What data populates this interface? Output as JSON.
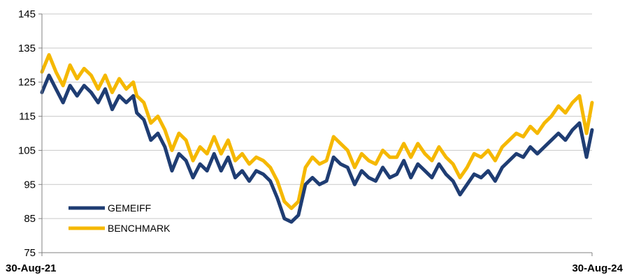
{
  "chart_data": {
    "type": "line",
    "title": "",
    "xlabel": "",
    "ylabel": "",
    "ylim": [
      75,
      145
    ],
    "yticks": [
      75,
      85,
      95,
      105,
      115,
      125,
      135,
      145
    ],
    "x_start": "30-Aug-21",
    "x_end": "30-Aug-24",
    "xtick_labels": [
      "30-Aug-21",
      "30-Aug-24"
    ],
    "grid": true,
    "legend_position": "bottom-left",
    "series": [
      {
        "name": "GEMEIFF",
        "color": "#1f3d73",
        "x": [
          "2021-08-30",
          "2021-09-13",
          "2021-09-27",
          "2021-10-11",
          "2021-10-25",
          "2021-11-08",
          "2021-11-22",
          "2021-12-06",
          "2021-12-20",
          "2022-01-03",
          "2022-01-17",
          "2022-01-31",
          "2022-02-14",
          "2022-02-28",
          "2022-03-07",
          "2022-03-21",
          "2022-04-04",
          "2022-04-18",
          "2022-05-02",
          "2022-05-16",
          "2022-05-30",
          "2022-06-13",
          "2022-06-27",
          "2022-07-11",
          "2022-07-25",
          "2022-08-08",
          "2022-08-22",
          "2022-09-05",
          "2022-09-19",
          "2022-10-03",
          "2022-10-17",
          "2022-10-31",
          "2022-11-14",
          "2022-11-28",
          "2022-12-12",
          "2022-12-26",
          "2023-01-09",
          "2023-01-23",
          "2023-02-06",
          "2023-02-20",
          "2023-03-06",
          "2023-03-20",
          "2023-04-03",
          "2023-04-17",
          "2023-05-01",
          "2023-05-15",
          "2023-05-29",
          "2023-06-12",
          "2023-06-26",
          "2023-07-10",
          "2023-07-24",
          "2023-08-07",
          "2023-08-21",
          "2023-09-04",
          "2023-09-18",
          "2023-10-02",
          "2023-10-16",
          "2023-10-30",
          "2023-11-13",
          "2023-11-27",
          "2023-12-11",
          "2023-12-25",
          "2024-01-08",
          "2024-01-22",
          "2024-02-05",
          "2024-02-19",
          "2024-03-04",
          "2024-03-18",
          "2024-04-01",
          "2024-04-15",
          "2024-04-29",
          "2024-05-13",
          "2024-05-27",
          "2024-06-10",
          "2024-06-24",
          "2024-07-08",
          "2024-07-22",
          "2024-08-05",
          "2024-08-19",
          "2024-08-30"
        ],
        "values": [
          122,
          127,
          123,
          119,
          124,
          121,
          124,
          122,
          119,
          123,
          117,
          121,
          119,
          121,
          116,
          114,
          108,
          110,
          106,
          99,
          104,
          102,
          97,
          101,
          99,
          104,
          99,
          103,
          97,
          99,
          96,
          99,
          98,
          96,
          91,
          85,
          84,
          86,
          95,
          97,
          95,
          96,
          103,
          101,
          100,
          95,
          99,
          97,
          96,
          100,
          97,
          98,
          102,
          97,
          101,
          99,
          97,
          101,
          98,
          96,
          92,
          95,
          98,
          97,
          99,
          96,
          100,
          102,
          104,
          103,
          106,
          104,
          106,
          108,
          110,
          108,
          111,
          113,
          103,
          111
        ]
      },
      {
        "name": "BENCHMARK",
        "color": "#f5b800",
        "x": [
          "2021-08-30",
          "2021-09-13",
          "2021-09-27",
          "2021-10-11",
          "2021-10-25",
          "2021-11-08",
          "2021-11-22",
          "2021-12-06",
          "2021-12-20",
          "2022-01-03",
          "2022-01-17",
          "2022-01-31",
          "2022-02-14",
          "2022-02-28",
          "2022-03-07",
          "2022-03-21",
          "2022-04-04",
          "2022-04-18",
          "2022-05-02",
          "2022-05-16",
          "2022-05-30",
          "2022-06-13",
          "2022-06-27",
          "2022-07-11",
          "2022-07-25",
          "2022-08-08",
          "2022-08-22",
          "2022-09-05",
          "2022-09-19",
          "2022-10-03",
          "2022-10-17",
          "2022-10-31",
          "2022-11-14",
          "2022-11-28",
          "2022-12-12",
          "2022-12-26",
          "2023-01-09",
          "2023-01-23",
          "2023-02-06",
          "2023-02-20",
          "2023-03-06",
          "2023-03-20",
          "2023-04-03",
          "2023-04-17",
          "2023-05-01",
          "2023-05-15",
          "2023-05-29",
          "2023-06-12",
          "2023-06-26",
          "2023-07-10",
          "2023-07-24",
          "2023-08-07",
          "2023-08-21",
          "2023-09-04",
          "2023-09-18",
          "2023-10-02",
          "2023-10-16",
          "2023-10-30",
          "2023-11-13",
          "2023-11-27",
          "2023-12-11",
          "2023-12-25",
          "2024-01-08",
          "2024-01-22",
          "2024-02-05",
          "2024-02-19",
          "2024-03-04",
          "2024-03-18",
          "2024-04-01",
          "2024-04-15",
          "2024-04-29",
          "2024-05-13",
          "2024-05-27",
          "2024-06-10",
          "2024-06-24",
          "2024-07-08",
          "2024-07-22",
          "2024-08-05",
          "2024-08-19",
          "2024-08-30"
        ],
        "values": [
          128,
          133,
          128,
          124,
          130,
          126,
          129,
          127,
          123,
          127,
          122,
          126,
          123,
          125,
          121,
          119,
          113,
          115,
          111,
          105,
          110,
          108,
          102,
          106,
          104,
          109,
          104,
          108,
          102,
          104,
          101,
          103,
          102,
          100,
          96,
          90,
          88,
          90,
          100,
          103,
          101,
          102,
          109,
          107,
          105,
          100,
          104,
          102,
          101,
          105,
          103,
          103,
          107,
          103,
          107,
          104,
          102,
          106,
          103,
          101,
          97,
          100,
          104,
          103,
          105,
          102,
          106,
          108,
          110,
          109,
          112,
          110,
          113,
          115,
          118,
          116,
          119,
          121,
          110,
          119
        ]
      }
    ]
  }
}
